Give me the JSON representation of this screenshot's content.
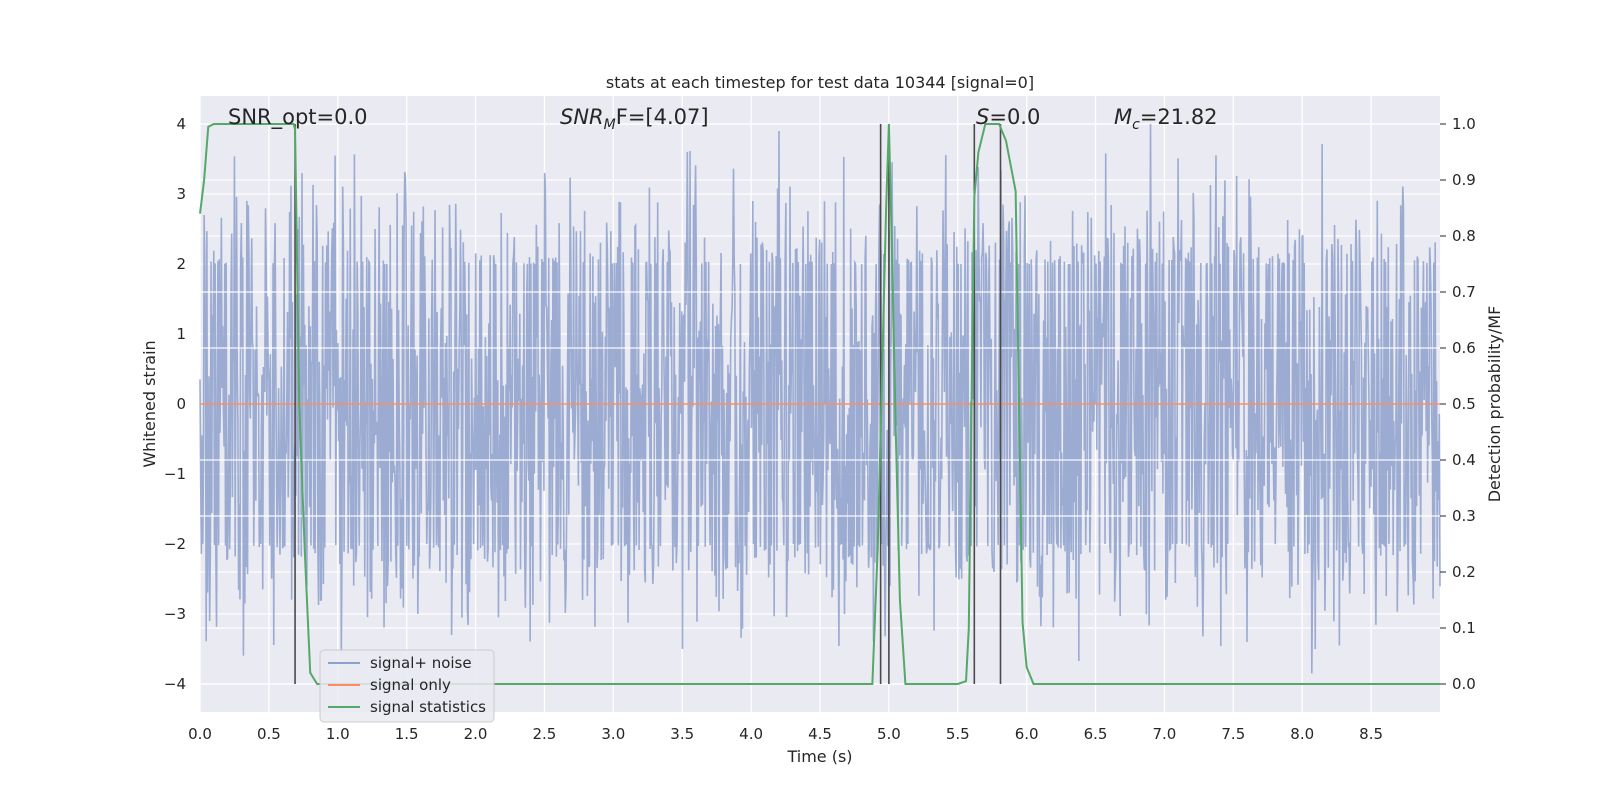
{
  "chart_data": {
    "type": "line",
    "title": "stats at each timestep for test data 10344 [signal=0]",
    "xlabel": "Time (s)",
    "ylabel": "Whitened strain",
    "y2label": "Detection probability/MF",
    "xlim": [
      0.0,
      9.0
    ],
    "ylim": [
      -4.4,
      4.4
    ],
    "y2lim": [
      -0.05,
      1.05
    ],
    "xticks": [
      "0.0",
      "0.5",
      "1.0",
      "1.5",
      "2.0",
      "2.5",
      "3.0",
      "3.5",
      "4.0",
      "4.5",
      "5.0",
      "5.5",
      "6.0",
      "6.5",
      "7.0",
      "7.5",
      "8.0",
      "8.5"
    ],
    "xtick_values": [
      0.0,
      0.5,
      1.0,
      1.5,
      2.0,
      2.5,
      3.0,
      3.5,
      4.0,
      4.5,
      5.0,
      5.5,
      6.0,
      6.5,
      7.0,
      7.5,
      8.0,
      8.5
    ],
    "yticks": [
      "4",
      "3",
      "2",
      "1",
      "0",
      "−1",
      "−2",
      "−3",
      "−4"
    ],
    "ytick_values": [
      4,
      3,
      2,
      1,
      0,
      -1,
      -2,
      -3,
      -4
    ],
    "y2ticks": [
      "1.0",
      "0.9",
      "0.8",
      "0.7",
      "0.6",
      "0.5",
      "0.4",
      "0.3",
      "0.2",
      "0.1",
      "0.0"
    ],
    "y2tick_values": [
      1.0,
      0.9,
      0.8,
      0.7,
      0.6,
      0.5,
      0.4,
      0.3,
      0.2,
      0.1,
      0.0
    ],
    "grid": true,
    "legend_position": "lower-left",
    "annotations": {
      "snr_opt": "SNR_opt=0.0",
      "snr_mf_base": "SNR",
      "snr_mf_sub": "M",
      "snr_mf_rest": "F=[4.07]",
      "s_label": "S",
      "s_rest": "=0.0",
      "mc_base": "M",
      "mc_sub": "c",
      "mc_rest": "=21.82"
    },
    "series": [
      {
        "name": "signal+ noise",
        "color": "#8da0cb",
        "noise_band": {
          "core_amplitude": 1.6,
          "peak_range": [
            2.0,
            3.9
          ],
          "trough_range": [
            -2.0,
            -3.9
          ]
        },
        "notable_peaks": [
          [
            0.03,
            2.7
          ],
          [
            0.07,
            -3.1
          ],
          [
            2.5,
            3.3
          ],
          [
            3.5,
            -3.5
          ],
          [
            4.2,
            3.9
          ],
          [
            6.9,
            4.0
          ],
          [
            7.6,
            -3.4
          ],
          [
            8.07,
            -3.85
          ],
          [
            1.58,
            -3.0
          ]
        ]
      },
      {
        "name": "signal only",
        "color": "#fc8d62",
        "x": [
          0.0,
          9.0
        ],
        "y": [
          0.0,
          0.0
        ]
      },
      {
        "name": "signal statistics",
        "color": "#55a868",
        "axis": "y2",
        "x": [
          0.0,
          0.03,
          0.06,
          0.1,
          0.2,
          0.3,
          0.5,
          0.65,
          0.68,
          0.69,
          0.72,
          0.76,
          0.8,
          0.85,
          1.0,
          2.0,
          3.0,
          4.0,
          4.5,
          4.88,
          4.92,
          4.95,
          4.98,
          5.0,
          5.02,
          5.05,
          5.08,
          5.12,
          5.5,
          5.56,
          5.58,
          5.6,
          5.62,
          5.65,
          5.7,
          5.8,
          5.85,
          5.92,
          5.97,
          6.0,
          6.05,
          7.0,
          8.0,
          8.5,
          9.0
        ],
        "y": [
          0.84,
          0.9,
          0.995,
          1.0,
          1.0,
          1.0,
          1.0,
          1.0,
          1.0,
          0.99,
          0.5,
          0.24,
          0.02,
          0.0,
          0.0,
          0.0,
          0.0,
          0.0,
          0.0,
          0.0,
          0.25,
          0.55,
          0.85,
          1.0,
          0.8,
          0.45,
          0.15,
          0.0,
          0.0,
          0.005,
          0.1,
          0.5,
          0.87,
          0.95,
          1.0,
          1.0,
          0.97,
          0.88,
          0.11,
          0.03,
          0.0,
          0.0,
          0.0,
          0.0,
          0.0
        ]
      }
    ],
    "vertical_markers": [
      0.69,
      4.94,
      5.0,
      5.62,
      5.81
    ]
  }
}
